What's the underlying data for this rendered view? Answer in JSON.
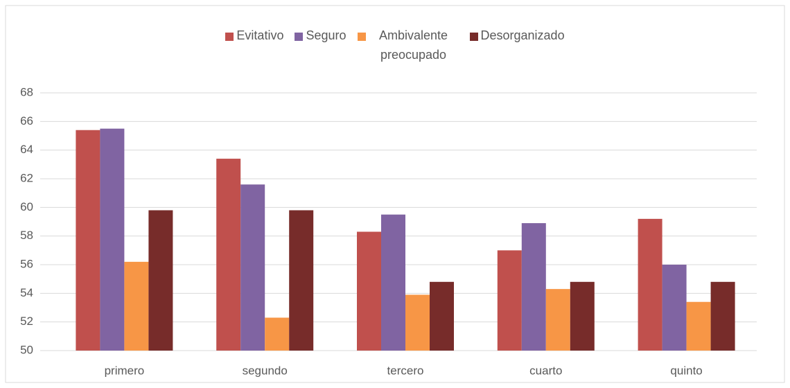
{
  "chart_data": {
    "type": "bar",
    "categories": [
      "primero",
      "segundo",
      "tercero",
      "cuarto",
      "quinto"
    ],
    "series": [
      {
        "name": "Evitativo",
        "color": "#c0504d",
        "values": [
          65.4,
          63.4,
          58.3,
          57.0,
          59.2
        ]
      },
      {
        "name": "Seguro",
        "color": "#8064a2",
        "values": [
          65.5,
          61.6,
          59.5,
          58.9,
          56.0
        ]
      },
      {
        "name": "Ambivalente preocupado",
        "color": "#f79646",
        "values": [
          56.2,
          52.3,
          53.9,
          54.3,
          53.4
        ]
      },
      {
        "name": "Desorganizado",
        "color": "#772c2a",
        "values": [
          59.8,
          59.8,
          54.8,
          54.8,
          54.8
        ]
      }
    ],
    "ylim": [
      50,
      68
    ],
    "yticks": [
      50,
      52,
      54,
      56,
      58,
      60,
      62,
      64,
      66,
      68
    ],
    "grid": true,
    "legend": "top"
  }
}
